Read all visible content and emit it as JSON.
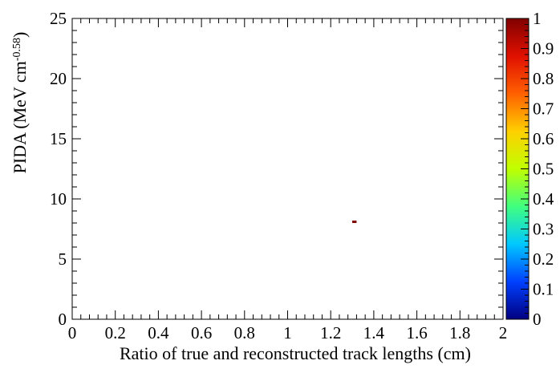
{
  "chart_data": {
    "type": "heatmap",
    "title": "",
    "xlabel": "Ratio of true and reconstructed track lengths (cm)",
    "ylabel_main": "PIDA (MeV cm",
    "ylabel_sup": "-0.58",
    "ylabel_close": ")",
    "xlim": [
      0,
      2
    ],
    "ylim": [
      0,
      25
    ],
    "x_ticks": [
      0,
      0.2,
      0.4,
      0.6,
      0.8,
      1,
      1.2,
      1.4,
      1.6,
      1.8,
      2
    ],
    "x_tick_labels": [
      "0",
      "0.2",
      "0.4",
      "0.6",
      "0.8",
      "1",
      "1.2",
      "1.4",
      "1.6",
      "1.8",
      "2"
    ],
    "y_ticks": [
      0,
      5,
      10,
      15,
      20,
      25
    ],
    "y_tick_labels": [
      "0",
      "5",
      "10",
      "15",
      "20",
      "25"
    ],
    "cells": [
      {
        "x0": 1.3,
        "x1": 1.32,
        "y0": 8.0,
        "y1": 8.2,
        "value": 1
      }
    ],
    "colorbar": {
      "range": [
        0,
        1
      ],
      "ticks": [
        0,
        0.1,
        0.2,
        0.3,
        0.4,
        0.5,
        0.6,
        0.7,
        0.8,
        0.9,
        1
      ],
      "tick_labels": [
        "0",
        "0.1",
        "0.2",
        "0.3",
        "0.4",
        "0.5",
        "0.6",
        "0.7",
        "0.8",
        "0.9",
        "1"
      ],
      "colormap": [
        "#000080",
        "#0040ff",
        "#00c8ff",
        "#40ff80",
        "#c0ff00",
        "#ffd000",
        "#ff6000",
        "#e01000",
        "#800000"
      ]
    },
    "grid": false,
    "legend": "none"
  }
}
